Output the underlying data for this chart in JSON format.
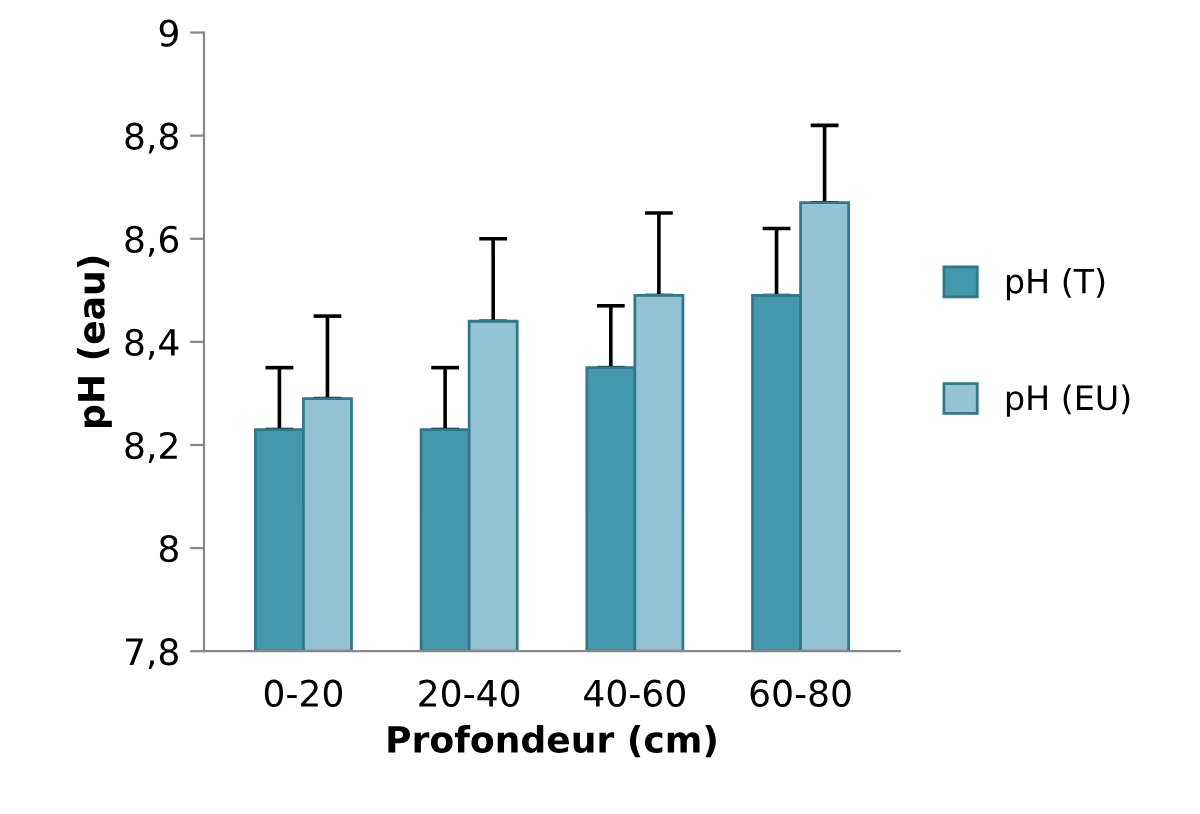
{
  "chart_data": {
    "type": "bar",
    "xlabel": "Profondeur (cm)",
    "ylabel": "pH (eau)",
    "categories": [
      "0-20",
      "20-40",
      "40-60",
      "60-80"
    ],
    "series": [
      {
        "name": "pH (T)",
        "color": "#4398ae",
        "values": [
          8.23,
          8.23,
          8.35,
          8.49
        ],
        "errors": [
          [
            8.23,
            8.35
          ],
          [
            8.23,
            8.35
          ],
          [
            8.35,
            8.47
          ],
          [
            8.49,
            8.62
          ]
        ]
      },
      {
        "name": "pH (EU)",
        "color": "#93c3d4",
        "values": [
          8.29,
          8.44,
          8.49,
          8.67
        ],
        "errors": [
          [
            8.29,
            8.45
          ],
          [
            8.44,
            8.6
          ],
          [
            8.49,
            8.65
          ],
          [
            8.67,
            8.82
          ]
        ]
      }
    ],
    "ylim": [
      7.8,
      9
    ],
    "yticks": [
      {
        "value": 7.8,
        "label": "7,8"
      },
      {
        "value": 8,
        "label": "8"
      },
      {
        "value": 8.2,
        "label": "8,2"
      },
      {
        "value": 8.4,
        "label": "8,4"
      },
      {
        "value": 8.6,
        "label": "8,6"
      },
      {
        "value": 8.8,
        "label": "8,8"
      },
      {
        "value": 9,
        "label": "9"
      }
    ],
    "grid": false,
    "legend": "right"
  }
}
